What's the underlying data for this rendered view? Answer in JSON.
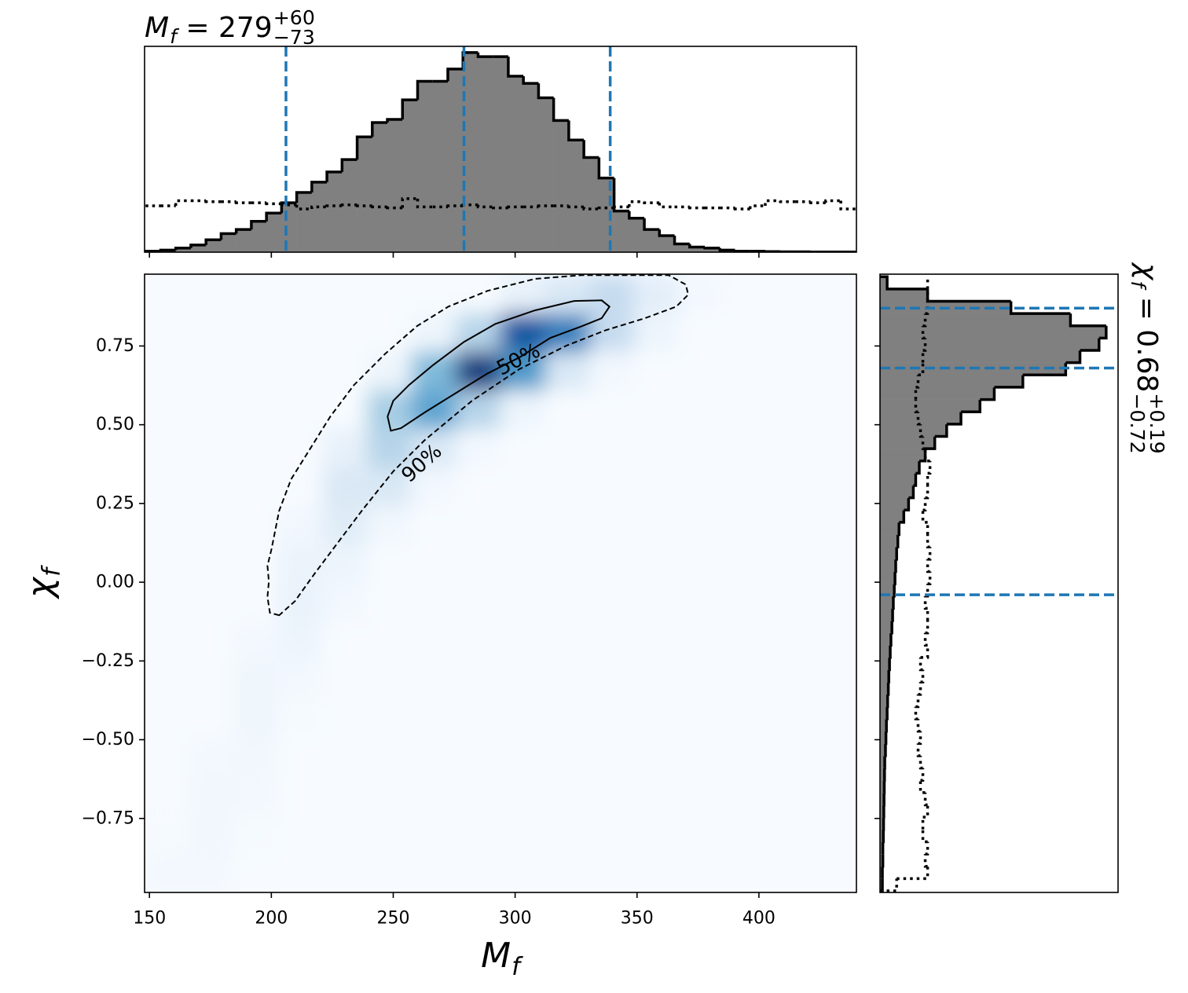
{
  "chart_data": {
    "type": "corner",
    "xlabel": {
      "main": "M",
      "sub": "f"
    },
    "ylabel": {
      "main": "χ",
      "sub": "f"
    },
    "xlim": [
      148,
      440
    ],
    "ylim": [
      -0.985,
      0.978
    ],
    "xticks": [
      150,
      200,
      250,
      300,
      350,
      400
    ],
    "yticks": [
      {
        "value": -0.75,
        "label": "−0.75"
      },
      {
        "value": -0.5,
        "label": "−0.50"
      },
      {
        "value": -0.25,
        "label": "−0.25"
      },
      {
        "value": 0,
        "label": "0.00"
      },
      {
        "value": 0.25,
        "label": "0.25"
      },
      {
        "value": 0.5,
        "label": "0.50"
      },
      {
        "value": 0.75,
        "label": "0.75"
      }
    ],
    "density": {
      "colormap": [
        "#f7fbff",
        "#deebf7",
        "#c6dbef",
        "#9ecae1",
        "#6baed6",
        "#4292c6",
        "#2171b5",
        "#08519c",
        "#08306b"
      ],
      "zlim": [
        0,
        1
      ],
      "z": [
        [
          0.02,
          0.02,
          0,
          0,
          0,
          0,
          0,
          0,
          0,
          0,
          0,
          0,
          0,
          0,
          0,
          0
        ],
        [
          0.01,
          0.03,
          0.01,
          0,
          0,
          0,
          0,
          0,
          0,
          0,
          0,
          0,
          0,
          0,
          0,
          0
        ],
        [
          0,
          0.03,
          0.02,
          0,
          0,
          0,
          0,
          0,
          0,
          0,
          0,
          0,
          0,
          0,
          0,
          0
        ],
        [
          0,
          0.02,
          0.03,
          0,
          0,
          0,
          0,
          0,
          0,
          0,
          0,
          0,
          0,
          0,
          0,
          0
        ],
        [
          0,
          0,
          0.04,
          0.01,
          0,
          0,
          0,
          0,
          0,
          0,
          0,
          0,
          0,
          0,
          0,
          0
        ],
        [
          0,
          0,
          0.04,
          0.02,
          0,
          0,
          0,
          0,
          0,
          0,
          0,
          0,
          0,
          0,
          0,
          0
        ],
        [
          0,
          0,
          0.02,
          0.05,
          0,
          0,
          0,
          0,
          0,
          0,
          0,
          0,
          0,
          0,
          0,
          0
        ],
        [
          0,
          0,
          0,
          0.07,
          0.02,
          0,
          0,
          0,
          0,
          0,
          0,
          0,
          0,
          0,
          0,
          0
        ],
        [
          0,
          0,
          0,
          0.06,
          0.05,
          0,
          0,
          0,
          0,
          0,
          0,
          0,
          0,
          0,
          0,
          0
        ],
        [
          0,
          0,
          0,
          0.03,
          0.12,
          0.03,
          0,
          0,
          0,
          0,
          0,
          0,
          0,
          0,
          0,
          0
        ],
        [
          0,
          0,
          0,
          0,
          0.15,
          0.15,
          0.02,
          0,
          0,
          0,
          0,
          0,
          0,
          0,
          0,
          0
        ],
        [
          0,
          0,
          0,
          0,
          0.08,
          0.3,
          0.15,
          0.02,
          0,
          0,
          0,
          0,
          0,
          0,
          0,
          0
        ],
        [
          0,
          0,
          0,
          0,
          0,
          0.35,
          0.55,
          0.3,
          0.05,
          0,
          0,
          0,
          0,
          0,
          0,
          0
        ],
        [
          0,
          0,
          0,
          0,
          0,
          0.05,
          0.45,
          0.95,
          0.6,
          0.15,
          0.02,
          0,
          0,
          0,
          0,
          0
        ],
        [
          0,
          0,
          0,
          0,
          0,
          0,
          0.05,
          0.3,
          0.85,
          0.7,
          0.25,
          0.05,
          0,
          0,
          0,
          0
        ],
        [
          0,
          0,
          0,
          0,
          0,
          0,
          0,
          0,
          0.08,
          0.15,
          0.25,
          0.1,
          0.02,
          0,
          0,
          0
        ]
      ]
    },
    "contours": [
      {
        "name": "50%",
        "style": "solid",
        "x": [
          249.0,
          247.7,
          250.0,
          256.5,
          266.1,
          279.0,
          291.9,
          308.1,
          324.2,
          335.5,
          338.7,
          335.5,
          327.4,
          314.5,
          301.6,
          288.7,
          275.8,
          262.9,
          253.2
        ],
        "y": [
          0.481,
          0.526,
          0.576,
          0.626,
          0.688,
          0.763,
          0.82,
          0.863,
          0.893,
          0.895,
          0.875,
          0.838,
          0.813,
          0.776,
          0.713,
          0.663,
          0.601,
          0.539,
          0.489
        ]
      },
      {
        "name": "90%",
        "style": "dashed",
        "x": [
          203.2,
          199.4,
          198.4,
          199.0,
          198.4,
          200.0,
          203.2,
          208.1,
          216.1,
          224.2,
          233.9,
          246.8,
          259.7,
          272.6,
          288.7,
          308.1,
          327.4,
          346.8,
          362.9,
          370.0,
          371.0,
          366.1,
          353.2,
          337.1,
          321.0,
          301.6,
          282.3,
          262.9,
          250.0,
          237.1,
          227.4,
          217.7,
          209.7
        ],
        "y": [
          -0.105,
          -0.097,
          -0.047,
          0.002,
          0.052,
          0.102,
          0.227,
          0.327,
          0.426,
          0.526,
          0.626,
          0.726,
          0.813,
          0.875,
          0.925,
          0.963,
          0.975,
          0.975,
          0.975,
          0.945,
          0.913,
          0.875,
          0.838,
          0.8,
          0.751,
          0.676,
          0.576,
          0.451,
          0.352,
          0.227,
          0.127,
          0.027,
          -0.06
        ]
      }
    ],
    "marginal_x": {
      "title": {
        "main": "M",
        "sub": "f",
        "rest": " = 279",
        "sup": "+60",
        "low": "−73"
      },
      "color": "#808080",
      "line_color": "#1f77b4",
      "ylim": [
        0,
        1
      ],
      "bins": [
        148.4,
        154.6,
        160.8,
        167.0,
        173.2,
        179.4,
        185.6,
        191.8,
        198.0,
        204.2,
        210.4,
        216.6,
        222.8,
        229.0,
        235.2,
        241.4,
        247.6,
        253.8,
        260.0,
        266.2,
        272.4,
        278.6,
        284.8,
        291.0,
        297.2,
        303.4,
        309.6,
        315.8,
        322.0,
        328.2,
        334.4,
        340.6,
        346.8,
        353.0,
        359.2,
        365.4,
        371.6,
        377.8,
        384.0,
        390.2,
        396.4,
        402.6,
        408.8,
        415.0,
        421.2,
        427.4,
        433.6,
        439.8
      ],
      "values": [
        0.005,
        0.01,
        0.02,
        0.035,
        0.06,
        0.09,
        0.11,
        0.15,
        0.19,
        0.24,
        0.29,
        0.34,
        0.39,
        0.45,
        0.56,
        0.63,
        0.645,
        0.74,
        0.83,
        0.83,
        0.89,
        0.97,
        0.95,
        0.95,
        0.855,
        0.82,
        0.75,
        0.64,
        0.545,
        0.46,
        0.36,
        0.2,
        0.165,
        0.11,
        0.08,
        0.04,
        0.025,
        0.02,
        0.01,
        0.005,
        0.005,
        0.003,
        0.002,
        0.002,
        0.001,
        0.001,
        0.001
      ],
      "prior": [
        0.225,
        0.225,
        0.25,
        0.25,
        0.245,
        0.245,
        0.24,
        0.24,
        0.235,
        0.23,
        0.21,
        0.22,
        0.225,
        0.23,
        0.225,
        0.22,
        0.215,
        0.26,
        0.22,
        0.22,
        0.225,
        0.23,
        0.22,
        0.215,
        0.22,
        0.22,
        0.225,
        0.225,
        0.22,
        0.21,
        0.215,
        0.22,
        0.245,
        0.24,
        0.22,
        0.22,
        0.215,
        0.215,
        0.215,
        0.21,
        0.225,
        0.25,
        0.245,
        0.245,
        0.24,
        0.25,
        0.21
      ],
      "lines": [
        206,
        279,
        339
      ]
    },
    "marginal_y": {
      "title": {
        "main": "χ",
        "sub": "f",
        "rest": " = 0.68",
        "sup": "+0.19",
        "low": "−0.72"
      },
      "color": "#808080",
      "line_color": "#1f77b4",
      "xlim": [
        0,
        1
      ],
      "bins": [
        -0.98,
        -0.941,
        -0.902,
        -0.863,
        -0.824,
        -0.785,
        -0.746,
        -0.707,
        -0.668,
        -0.629,
        -0.59,
        -0.551,
        -0.512,
        -0.473,
        -0.434,
        -0.395,
        -0.356,
        -0.317,
        -0.278,
        -0.239,
        -0.2,
        -0.161,
        -0.122,
        -0.083,
        -0.044,
        -0.005,
        0.034,
        0.073,
        0.112,
        0.151,
        0.19,
        0.229,
        0.268,
        0.307,
        0.346,
        0.385,
        0.424,
        0.463,
        0.502,
        0.541,
        0.58,
        0.619,
        0.658,
        0.697,
        0.736,
        0.775,
        0.814,
        0.853,
        0.892,
        0.931,
        0.97
      ],
      "values": [
        0.01,
        0.01,
        0.012,
        0.012,
        0.014,
        0.015,
        0.016,
        0.017,
        0.018,
        0.019,
        0.02,
        0.023,
        0.025,
        0.027,
        0.03,
        0.032,
        0.035,
        0.037,
        0.04,
        0.043,
        0.046,
        0.05,
        0.053,
        0.056,
        0.06,
        0.063,
        0.066,
        0.07,
        0.075,
        0.08,
        0.1,
        0.12,
        0.14,
        0.15,
        0.165,
        0.19,
        0.23,
        0.28,
        0.34,
        0.42,
        0.48,
        0.6,
        0.78,
        0.84,
        0.92,
        0.95,
        0.8,
        0.55,
        0.2,
        0.03
      ],
      "prior": [
        0.07,
        0.2,
        0.19,
        0.2,
        0.18,
        0.18,
        0.2,
        0.19,
        0.17,
        0.18,
        0.17,
        0.16,
        0.17,
        0.16,
        0.15,
        0.16,
        0.17,
        0.18,
        0.17,
        0.2,
        0.19,
        0.2,
        0.2,
        0.19,
        0.2,
        0.21,
        0.2,
        0.21,
        0.2,
        0.2,
        0.18,
        0.19,
        0.2,
        0.2,
        0.21,
        0.19,
        0.18,
        0.17,
        0.16,
        0.15,
        0.15,
        0.16,
        0.18,
        0.18,
        0.19,
        0.18,
        0.19,
        0.2,
        0.2,
        0.2
      ],
      "lines": [
        -0.04,
        0.68,
        0.87
      ]
    }
  }
}
